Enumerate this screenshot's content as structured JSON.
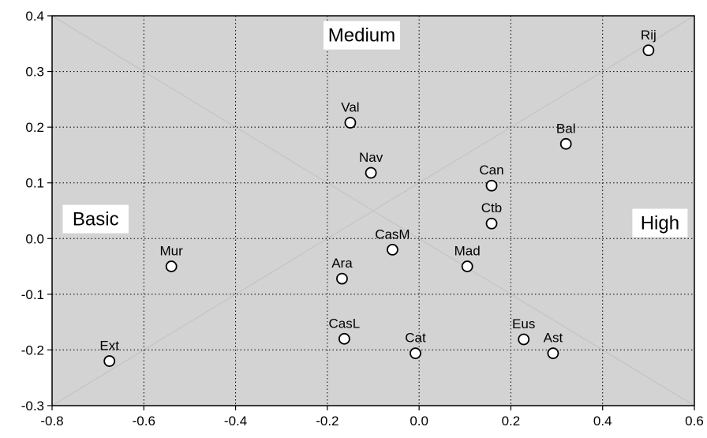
{
  "chart_data": {
    "type": "scatter",
    "title": "",
    "xlabel": "",
    "ylabel": "",
    "xlim": [
      -0.8,
      0.6
    ],
    "ylim": [
      -0.3,
      0.4
    ],
    "grid": true,
    "x_ticks": [
      "-0.8",
      "-0.6",
      "-0.4",
      "-0.2",
      "0.0",
      "0.2",
      "0.4",
      "0.6"
    ],
    "y_ticks": [
      "0.4",
      "0.3",
      "0.2",
      "0.1",
      "0.0",
      "-0.1",
      "-0.2",
      "-0.3"
    ],
    "points": [
      {
        "label": "Rij",
        "x": 0.5,
        "y": 0.338
      },
      {
        "label": "Bal",
        "x": 0.32,
        "y": 0.17
      },
      {
        "label": "Val",
        "x": -0.15,
        "y": 0.208
      },
      {
        "label": "Nav",
        "x": -0.105,
        "y": 0.118
      },
      {
        "label": "Can",
        "x": 0.158,
        "y": 0.095
      },
      {
        "label": "Ctb",
        "x": 0.158,
        "y": 0.027
      },
      {
        "label": "CasM",
        "x": -0.058,
        "y": -0.02
      },
      {
        "label": "Mad",
        "x": 0.105,
        "y": -0.05
      },
      {
        "label": "Mur",
        "x": -0.54,
        "y": -0.05
      },
      {
        "label": "Ara",
        "x": -0.168,
        "y": -0.072
      },
      {
        "label": "CasL",
        "x": -0.163,
        "y": -0.18
      },
      {
        "label": "Cat",
        "x": -0.008,
        "y": -0.206
      },
      {
        "label": "Eus",
        "x": 0.228,
        "y": -0.181
      },
      {
        "label": "Ast",
        "x": 0.292,
        "y": -0.206
      },
      {
        "label": "Ext",
        "x": -0.675,
        "y": -0.22
      }
    ],
    "annotations": [
      {
        "text": "Medium",
        "x": -0.125,
        "y": 0.365
      },
      {
        "text": "Basic",
        "x": -0.705,
        "y": 0.035
      },
      {
        "text": "High",
        "x": 0.525,
        "y": 0.028
      }
    ]
  }
}
